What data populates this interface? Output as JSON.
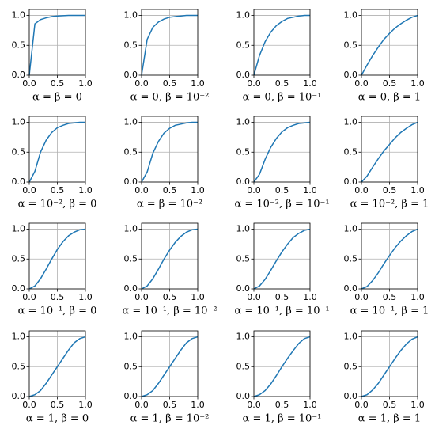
{
  "chart_data": [
    {
      "type": "line",
      "xlabel": "α = β = 0",
      "x": [
        0,
        0.1,
        0.2,
        0.3,
        0.4,
        0.5,
        0.6,
        0.7,
        0.8,
        0.9,
        1
      ],
      "values": [
        0,
        0.86,
        0.93,
        0.96,
        0.98,
        0.99,
        0.995,
        1,
        1,
        1,
        1
      ],
      "color": "#1f77b4",
      "xlim": [
        0,
        1
      ],
      "ylim": [
        0,
        1.1
      ],
      "xticks": [
        {
          "value": 0,
          "label": "0.0"
        },
        {
          "value": 0.5,
          "label": "0.5"
        },
        {
          "value": 1,
          "label": "1.0"
        }
      ],
      "yticks": [
        {
          "value": 0,
          "label": "0.0"
        },
        {
          "value": 0.5,
          "label": "0.5"
        },
        {
          "value": 1,
          "label": "1.0"
        }
      ],
      "grid": true
    },
    {
      "type": "line",
      "xlabel": "α = 0, β = 10⁻²",
      "x": [
        0,
        0.1,
        0.2,
        0.3,
        0.4,
        0.5,
        0.6,
        0.7,
        0.8,
        0.9,
        1
      ],
      "values": [
        0,
        0.6,
        0.8,
        0.89,
        0.94,
        0.97,
        0.98,
        0.99,
        1,
        1,
        1
      ],
      "color": "#1f77b4",
      "xlim": [
        0,
        1
      ],
      "ylim": [
        0,
        1.1
      ],
      "xticks": [
        {
          "value": 0,
          "label": "0.0"
        },
        {
          "value": 0.5,
          "label": "0.5"
        },
        {
          "value": 1,
          "label": "1.0"
        }
      ],
      "yticks": [
        {
          "value": 0,
          "label": "0.0"
        },
        {
          "value": 0.5,
          "label": "0.5"
        },
        {
          "value": 1,
          "label": "1.0"
        }
      ],
      "grid": true
    },
    {
      "type": "line",
      "xlabel": "α = 0, β = 10⁻¹",
      "x": [
        0,
        0.1,
        0.2,
        0.3,
        0.4,
        0.5,
        0.6,
        0.7,
        0.8,
        0.9,
        1
      ],
      "values": [
        0,
        0.33,
        0.56,
        0.72,
        0.83,
        0.9,
        0.95,
        0.97,
        0.99,
        1,
        1
      ],
      "color": "#1f77b4",
      "xlim": [
        0,
        1
      ],
      "ylim": [
        0,
        1.1
      ],
      "xticks": [
        {
          "value": 0,
          "label": "0.0"
        },
        {
          "value": 0.5,
          "label": "0.5"
        },
        {
          "value": 1,
          "label": "1.0"
        }
      ],
      "yticks": [
        {
          "value": 0,
          "label": "0.0"
        },
        {
          "value": 0.5,
          "label": "0.5"
        },
        {
          "value": 1,
          "label": "1.0"
        }
      ],
      "grid": true
    },
    {
      "type": "line",
      "xlabel": "α = 0, β = 1",
      "x": [
        0,
        0.1,
        0.2,
        0.3,
        0.4,
        0.5,
        0.6,
        0.7,
        0.8,
        0.9,
        1
      ],
      "values": [
        0,
        0.17,
        0.33,
        0.47,
        0.6,
        0.7,
        0.79,
        0.86,
        0.92,
        0.97,
        1
      ],
      "color": "#1f77b4",
      "xlim": [
        0,
        1
      ],
      "ylim": [
        0,
        1.1
      ],
      "xticks": [
        {
          "value": 0,
          "label": "0.0"
        },
        {
          "value": 0.5,
          "label": "0.5"
        },
        {
          "value": 1,
          "label": "1.0"
        }
      ],
      "yticks": [
        {
          "value": 0,
          "label": "0.0"
        },
        {
          "value": 0.5,
          "label": "0.5"
        },
        {
          "value": 1,
          "label": "1.0"
        }
      ],
      "grid": true
    },
    {
      "type": "line",
      "xlabel": "α = 10⁻², β = 0",
      "x": [
        0,
        0.1,
        0.2,
        0.3,
        0.4,
        0.5,
        0.6,
        0.7,
        0.8,
        0.9,
        1
      ],
      "values": [
        0,
        0.18,
        0.5,
        0.7,
        0.83,
        0.91,
        0.95,
        0.98,
        0.99,
        1,
        1
      ],
      "color": "#1f77b4",
      "xlim": [
        0,
        1
      ],
      "ylim": [
        0,
        1.1
      ],
      "xticks": [
        {
          "value": 0,
          "label": "0.0"
        },
        {
          "value": 0.5,
          "label": "0.5"
        },
        {
          "value": 1,
          "label": "1.0"
        }
      ],
      "yticks": [
        {
          "value": 0,
          "label": "0.0"
        },
        {
          "value": 0.5,
          "label": "0.5"
        },
        {
          "value": 1,
          "label": "1.0"
        }
      ],
      "grid": true
    },
    {
      "type": "line",
      "xlabel": "α = β = 10⁻²",
      "x": [
        0,
        0.1,
        0.2,
        0.3,
        0.4,
        0.5,
        0.6,
        0.7,
        0.8,
        0.9,
        1
      ],
      "values": [
        0,
        0.17,
        0.48,
        0.68,
        0.82,
        0.9,
        0.95,
        0.97,
        0.99,
        1,
        1
      ],
      "color": "#1f77b4",
      "xlim": [
        0,
        1
      ],
      "ylim": [
        0,
        1.1
      ],
      "xticks": [
        {
          "value": 0,
          "label": "0.0"
        },
        {
          "value": 0.5,
          "label": "0.5"
        },
        {
          "value": 1,
          "label": "1.0"
        }
      ],
      "yticks": [
        {
          "value": 0,
          "label": "0.0"
        },
        {
          "value": 0.5,
          "label": "0.5"
        },
        {
          "value": 1,
          "label": "1.0"
        }
      ],
      "grid": true
    },
    {
      "type": "line",
      "xlabel": "α = 10⁻², β = 10⁻¹",
      "x": [
        0,
        0.1,
        0.2,
        0.3,
        0.4,
        0.5,
        0.6,
        0.7,
        0.8,
        0.9,
        1
      ],
      "values": [
        0,
        0.13,
        0.38,
        0.58,
        0.73,
        0.84,
        0.91,
        0.95,
        0.98,
        0.99,
        1
      ],
      "color": "#1f77b4",
      "xlim": [
        0,
        1
      ],
      "ylim": [
        0,
        1.1
      ],
      "xticks": [
        {
          "value": 0,
          "label": "0.0"
        },
        {
          "value": 0.5,
          "label": "0.5"
        },
        {
          "value": 1,
          "label": "1.0"
        }
      ],
      "yticks": [
        {
          "value": 0,
          "label": "0.0"
        },
        {
          "value": 0.5,
          "label": "0.5"
        },
        {
          "value": 1,
          "label": "1.0"
        }
      ],
      "grid": true
    },
    {
      "type": "line",
      "xlabel": "α = 10⁻², β = 1",
      "x": [
        0,
        0.1,
        0.2,
        0.3,
        0.4,
        0.5,
        0.6,
        0.7,
        0.8,
        0.9,
        1
      ],
      "values": [
        0,
        0.1,
        0.25,
        0.39,
        0.52,
        0.63,
        0.74,
        0.83,
        0.9,
        0.96,
        1
      ],
      "color": "#1f77b4",
      "xlim": [
        0,
        1
      ],
      "ylim": [
        0,
        1.1
      ],
      "xticks": [
        {
          "value": 0,
          "label": "0.0"
        },
        {
          "value": 0.5,
          "label": "0.5"
        },
        {
          "value": 1,
          "label": "1.0"
        }
      ],
      "yticks": [
        {
          "value": 0,
          "label": "0.0"
        },
        {
          "value": 0.5,
          "label": "0.5"
        },
        {
          "value": 1,
          "label": "1.0"
        }
      ],
      "grid": true
    },
    {
      "type": "line",
      "xlabel": "α = 10⁻¹, β = 0",
      "x": [
        0,
        0.1,
        0.2,
        0.3,
        0.4,
        0.5,
        0.6,
        0.7,
        0.8,
        0.9,
        1
      ],
      "values": [
        0,
        0.05,
        0.17,
        0.33,
        0.5,
        0.66,
        0.79,
        0.89,
        0.95,
        0.99,
        1
      ],
      "color": "#1f77b4",
      "xlim": [
        0,
        1
      ],
      "ylim": [
        0,
        1.1
      ],
      "xticks": [
        {
          "value": 0,
          "label": "0.0"
        },
        {
          "value": 0.5,
          "label": "0.5"
        },
        {
          "value": 1,
          "label": "1.0"
        }
      ],
      "yticks": [
        {
          "value": 0,
          "label": "0.0"
        },
        {
          "value": 0.5,
          "label": "0.5"
        },
        {
          "value": 1,
          "label": "1.0"
        }
      ],
      "grid": true
    },
    {
      "type": "line",
      "xlabel": "α = 10⁻¹, β = 10⁻²",
      "x": [
        0,
        0.1,
        0.2,
        0.3,
        0.4,
        0.5,
        0.6,
        0.7,
        0.8,
        0.9,
        1
      ],
      "values": [
        0,
        0.05,
        0.17,
        0.33,
        0.5,
        0.65,
        0.78,
        0.88,
        0.95,
        0.99,
        1
      ],
      "color": "#1f77b4",
      "xlim": [
        0,
        1
      ],
      "ylim": [
        0,
        1.1
      ],
      "xticks": [
        {
          "value": 0,
          "label": "0.0"
        },
        {
          "value": 0.5,
          "label": "0.5"
        },
        {
          "value": 1,
          "label": "1.0"
        }
      ],
      "yticks": [
        {
          "value": 0,
          "label": "0.0"
        },
        {
          "value": 0.5,
          "label": "0.5"
        },
        {
          "value": 1,
          "label": "1.0"
        }
      ],
      "grid": true
    },
    {
      "type": "line",
      "xlabel": "α = 10⁻¹, β = 10⁻¹",
      "x": [
        0,
        0.1,
        0.2,
        0.3,
        0.4,
        0.5,
        0.6,
        0.7,
        0.8,
        0.9,
        1
      ],
      "values": [
        0,
        0.05,
        0.16,
        0.31,
        0.47,
        0.62,
        0.75,
        0.86,
        0.93,
        0.98,
        1
      ],
      "color": "#1f77b4",
      "xlim": [
        0,
        1
      ],
      "ylim": [
        0,
        1.1
      ],
      "xticks": [
        {
          "value": 0,
          "label": "0.0"
        },
        {
          "value": 0.5,
          "label": "0.5"
        },
        {
          "value": 1,
          "label": "1.0"
        }
      ],
      "yticks": [
        {
          "value": 0,
          "label": "0.0"
        },
        {
          "value": 0.5,
          "label": "0.5"
        },
        {
          "value": 1,
          "label": "1.0"
        }
      ],
      "grid": true
    },
    {
      "type": "line",
      "xlabel": "α = 10⁻¹, β = 1",
      "x": [
        0,
        0.1,
        0.2,
        0.3,
        0.4,
        0.5,
        0.6,
        0.7,
        0.8,
        0.9,
        1
      ],
      "values": [
        0,
        0.04,
        0.14,
        0.27,
        0.42,
        0.56,
        0.69,
        0.8,
        0.89,
        0.96,
        1
      ],
      "color": "#1f77b4",
      "xlim": [
        0,
        1
      ],
      "ylim": [
        0,
        1.1
      ],
      "xticks": [
        {
          "value": 0,
          "label": "0.0"
        },
        {
          "value": 0.5,
          "label": "0.5"
        },
        {
          "value": 1,
          "label": "1.0"
        }
      ],
      "yticks": [
        {
          "value": 0,
          "label": "0.0"
        },
        {
          "value": 0.5,
          "label": "0.5"
        },
        {
          "value": 1,
          "label": "1.0"
        }
      ],
      "grid": true
    },
    {
      "type": "line",
      "xlabel": "α = 1, β = 0",
      "x": [
        0,
        0.1,
        0.2,
        0.3,
        0.4,
        0.5,
        0.6,
        0.7,
        0.8,
        0.9,
        1
      ],
      "values": [
        0,
        0.03,
        0.1,
        0.22,
        0.36,
        0.5,
        0.64,
        0.78,
        0.9,
        0.97,
        1
      ],
      "color": "#1f77b4",
      "xlim": [
        0,
        1
      ],
      "ylim": [
        0,
        1.1
      ],
      "xticks": [
        {
          "value": 0,
          "label": "0.0"
        },
        {
          "value": 0.5,
          "label": "0.5"
        },
        {
          "value": 1,
          "label": "1.0"
        }
      ],
      "yticks": [
        {
          "value": 0,
          "label": "0.0"
        },
        {
          "value": 0.5,
          "label": "0.5"
        },
        {
          "value": 1,
          "label": "1.0"
        }
      ],
      "grid": true
    },
    {
      "type": "line",
      "xlabel": "α = 1, β = 10⁻²",
      "x": [
        0,
        0.1,
        0.2,
        0.3,
        0.4,
        0.5,
        0.6,
        0.7,
        0.8,
        0.9,
        1
      ],
      "values": [
        0,
        0.03,
        0.1,
        0.22,
        0.36,
        0.5,
        0.64,
        0.78,
        0.9,
        0.97,
        1
      ],
      "color": "#1f77b4",
      "xlim": [
        0,
        1
      ],
      "ylim": [
        0,
        1.1
      ],
      "xticks": [
        {
          "value": 0,
          "label": "0.0"
        },
        {
          "value": 0.5,
          "label": "0.5"
        },
        {
          "value": 1,
          "label": "1.0"
        }
      ],
      "yticks": [
        {
          "value": 0,
          "label": "0.0"
        },
        {
          "value": 0.5,
          "label": "0.5"
        },
        {
          "value": 1,
          "label": "1.0"
        }
      ],
      "grid": true
    },
    {
      "type": "line",
      "xlabel": "α = 1, β = 10⁻¹",
      "x": [
        0,
        0.1,
        0.2,
        0.3,
        0.4,
        0.5,
        0.6,
        0.7,
        0.8,
        0.9,
        1
      ],
      "values": [
        0,
        0.03,
        0.1,
        0.21,
        0.35,
        0.5,
        0.64,
        0.77,
        0.89,
        0.97,
        1
      ],
      "color": "#1f77b4",
      "xlim": [
        0,
        1
      ],
      "ylim": [
        0,
        1.1
      ],
      "xticks": [
        {
          "value": 0,
          "label": "0.0"
        },
        {
          "value": 0.5,
          "label": "0.5"
        },
        {
          "value": 1,
          "label": "1.0"
        }
      ],
      "yticks": [
        {
          "value": 0,
          "label": "0.0"
        },
        {
          "value": 0.5,
          "label": "0.5"
        },
        {
          "value": 1,
          "label": "1.0"
        }
      ],
      "grid": true
    },
    {
      "type": "line",
      "xlabel": "α = 1, β = 1",
      "x": [
        0,
        0.1,
        0.2,
        0.3,
        0.4,
        0.5,
        0.6,
        0.7,
        0.8,
        0.9,
        1
      ],
      "values": [
        0,
        0.03,
        0.11,
        0.22,
        0.36,
        0.5,
        0.64,
        0.77,
        0.88,
        0.96,
        1
      ],
      "color": "#1f77b4",
      "xlim": [
        0,
        1
      ],
      "ylim": [
        0,
        1.1
      ],
      "xticks": [
        {
          "value": 0,
          "label": "0.0"
        },
        {
          "value": 0.5,
          "label": "0.5"
        },
        {
          "value": 1,
          "label": "1.0"
        }
      ],
      "yticks": [
        {
          "value": 0,
          "label": "0.0"
        },
        {
          "value": 0.5,
          "label": "0.5"
        },
        {
          "value": 1,
          "label": "1.0"
        }
      ],
      "grid": true
    }
  ]
}
